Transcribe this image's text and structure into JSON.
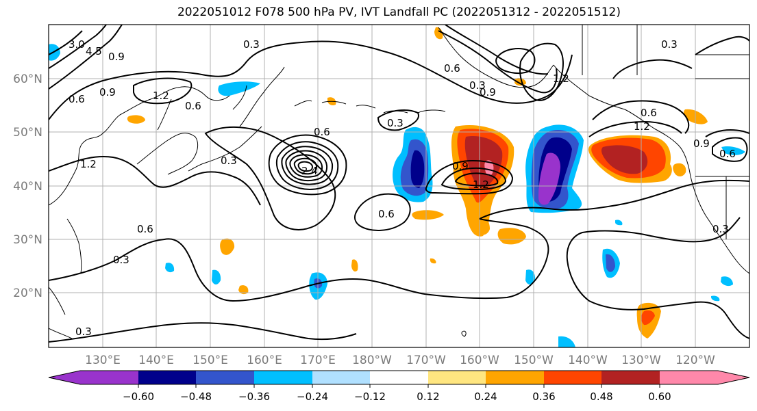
{
  "title": "2022051012 F078 500 hPa PV, IVT Landfall PC (2022051312 - 2022051512)",
  "map": {
    "lat_labels": [
      "60°N",
      "50°N",
      "40°N",
      "30°N",
      "20°N"
    ],
    "lon_labels": [
      "130°E",
      "140°E",
      "150°E",
      "160°E",
      "170°E",
      "180°W",
      "170°W",
      "160°W",
      "150°W",
      "140°W",
      "130°W",
      "120°W"
    ],
    "contour_labels": [
      "3.0",
      "4.5",
      "0.9",
      "0.3",
      "1.2",
      "0.6",
      "0.9",
      "0.6",
      "1.2",
      "0.3",
      "0.6",
      "0.3",
      "0.6",
      "2.4",
      "0.9",
      "1.2",
      "0.6",
      "0.3",
      "0.6",
      "0.3",
      "0.9",
      "1.2",
      "0.3",
      "0.6",
      "1.2",
      "0.9",
      "0.6",
      "0.3",
      "0.3"
    ]
  },
  "colorbar": {
    "tick_labels": [
      "−0.60",
      "−0.48",
      "−0.36",
      "−0.24",
      "−0.12",
      "0.12",
      "0.24",
      "0.36",
      "0.48",
      "0.60"
    ],
    "colors": [
      "#9933cc",
      "#00008b",
      "#3355cc",
      "#00bfff",
      "#b0e0ff",
      "#ffffff",
      "#ffe680",
      "#ffa500",
      "#ff4500",
      "#b22222",
      "#ff88aa"
    ]
  }
}
